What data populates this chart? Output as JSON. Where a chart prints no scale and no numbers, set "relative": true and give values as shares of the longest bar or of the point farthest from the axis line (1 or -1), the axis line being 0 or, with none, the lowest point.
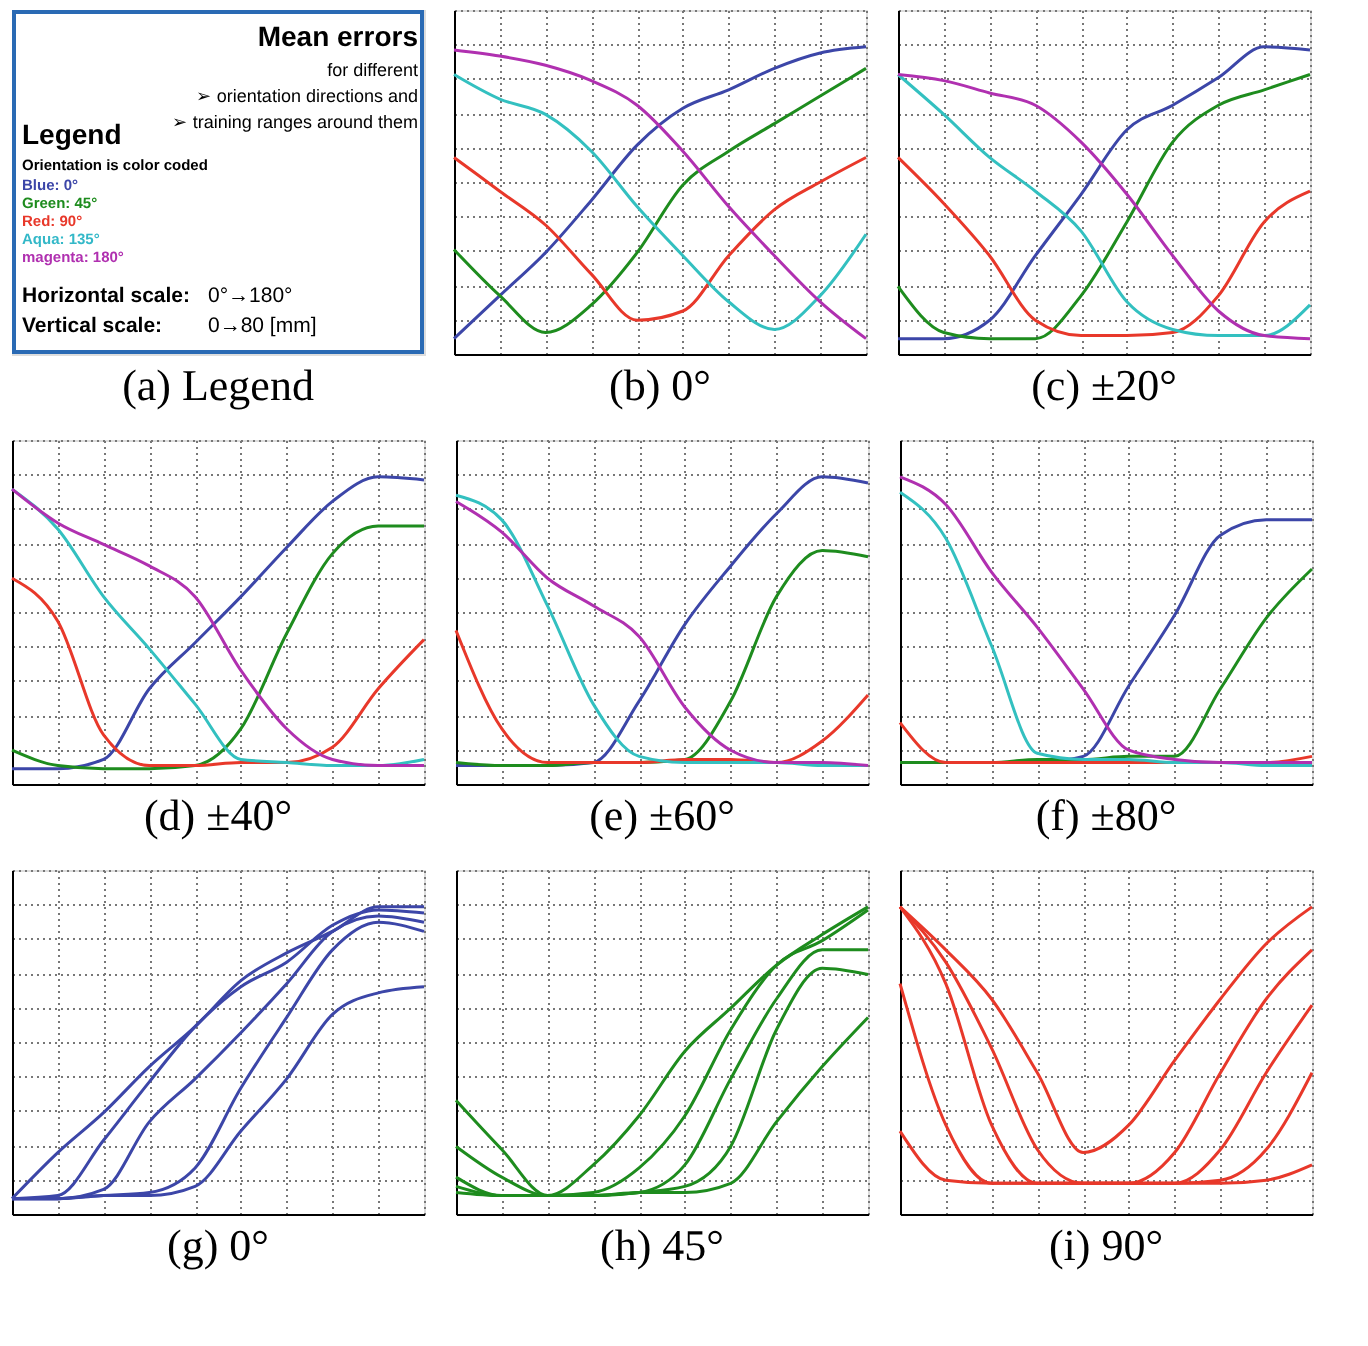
{
  "chart_data": [
    {
      "type": "other",
      "title": "(a) Legend",
      "annotations": [
        "Mean errors",
        "for different",
        "➢     orientation directions and",
        "➢ training ranges around them",
        "Legend",
        "Orientation is color coded",
        "Horizontal scale:",
        "0°→180°",
        "Vertical scale:",
        "0→80 [mm]"
      ],
      "categories": [
        "Blue: 0°",
        "Green: 45°",
        "Red: 90°",
        "Aqua: 135°",
        "magenta: 180°"
      ],
      "colors": [
        "#3c46a8",
        "#1e8c1e",
        "#e8382a",
        "#33b8c8",
        "#b030b0"
      ]
    },
    {
      "type": "line",
      "title": "(b) 0°",
      "relative": true,
      "grid": true,
      "tick_labels": false,
      "categories": [
        null,
        null,
        null,
        null,
        null,
        null,
        null,
        null,
        null,
        null
      ],
      "series": [
        {
          "color": "#3c46a8",
          "values": [
            0.05,
            0.19,
            0.33,
            0.5,
            0.68,
            0.8,
            0.86,
            0.93,
            0.98,
            1
          ]
        },
        {
          "color": "#1e8c1e",
          "values": [
            0.34,
            0.19,
            0.07,
            0.16,
            0.33,
            0.55,
            0.66,
            0.75,
            0.84,
            0.93
          ]
        },
        {
          "color": "#e8382a",
          "values": [
            0.64,
            0.53,
            0.42,
            0.26,
            0.11,
            0.14,
            0.32,
            0.47,
            0.56,
            0.64
          ]
        },
        {
          "color": "#33c0c0",
          "values": [
            0.91,
            0.83,
            0.78,
            0.66,
            0.48,
            0.32,
            0.17,
            0.08,
            0.19,
            0.39
          ]
        },
        {
          "color": "#b030b0",
          "values": [
            0.99,
            0.97,
            0.94,
            0.89,
            0.81,
            0.66,
            0.48,
            0.32,
            0.17,
            0.05
          ]
        }
      ]
    },
    {
      "type": "line",
      "title": "(c) ±20°",
      "relative": true,
      "grid": true,
      "tick_labels": false,
      "categories": [
        null,
        null,
        null,
        null,
        null,
        null,
        null,
        null,
        null,
        null
      ],
      "series": [
        {
          "color": "#3c46a8",
          "values": [
            0.05,
            0.05,
            0.11,
            0.32,
            0.52,
            0.73,
            0.81,
            0.9,
            1,
            0.99
          ]
        },
        {
          "color": "#1e8c1e",
          "values": [
            0.22,
            0.07,
            0.05,
            0.05,
            0.19,
            0.43,
            0.69,
            0.81,
            0.86,
            0.91
          ]
        },
        {
          "color": "#e8382a",
          "values": [
            0.64,
            0.49,
            0.32,
            0.11,
            0.06,
            0.06,
            0.07,
            0.19,
            0.43,
            0.53
          ]
        },
        {
          "color": "#33c0c0",
          "values": [
            0.91,
            0.78,
            0.64,
            0.53,
            0.4,
            0.17,
            0.08,
            0.06,
            0.06,
            0.16
          ]
        },
        {
          "color": "#b030b0",
          "values": [
            0.91,
            0.89,
            0.85,
            0.81,
            0.69,
            0.52,
            0.32,
            0.14,
            0.06,
            0.05
          ]
        }
      ]
    },
    {
      "type": "line",
      "title": "(d) ±40°",
      "relative": true,
      "grid": true,
      "tick_labels": false,
      "categories": [
        null,
        null,
        null,
        null,
        null,
        null,
        null,
        null,
        null,
        null
      ],
      "series": [
        {
          "color": "#3c46a8",
          "values": [
            0.05,
            0.05,
            0.08,
            0.31,
            0.46,
            0.61,
            0.77,
            0.92,
            1,
            0.99
          ]
        },
        {
          "color": "#1e8c1e",
          "values": [
            0.11,
            0.06,
            0.05,
            0.05,
            0.06,
            0.18,
            0.49,
            0.75,
            0.84,
            0.84
          ]
        },
        {
          "color": "#e8382a",
          "values": [
            0.67,
            0.53,
            0.16,
            0.06,
            0.06,
            0.07,
            0.07,
            0.12,
            0.31,
            0.47
          ]
        },
        {
          "color": "#33c0c0",
          "values": [
            0.96,
            0.83,
            0.61,
            0.44,
            0.26,
            0.08,
            0.07,
            0.06,
            0.06,
            0.08
          ]
        },
        {
          "color": "#b030b0",
          "values": [
            0.96,
            0.85,
            0.78,
            0.71,
            0.61,
            0.37,
            0.18,
            0.08,
            0.06,
            0.06
          ]
        }
      ]
    },
    {
      "type": "line",
      "title": "(e) ±60°",
      "relative": true,
      "grid": true,
      "tick_labels": false,
      "categories": [
        null,
        null,
        null,
        null,
        null,
        null,
        null,
        null,
        null,
        null
      ],
      "series": [
        {
          "color": "#3c46a8",
          "values": [
            0.06,
            0.06,
            0.06,
            0.07,
            0.27,
            0.52,
            0.71,
            0.88,
            1,
            0.98
          ]
        },
        {
          "color": "#1e8c1e",
          "values": [
            0.07,
            0.06,
            0.06,
            0.07,
            0.07,
            0.08,
            0.27,
            0.61,
            0.76,
            0.74
          ]
        },
        {
          "color": "#e8382a",
          "values": [
            0.5,
            0.18,
            0.07,
            0.07,
            0.07,
            0.08,
            0.08,
            0.07,
            0.14,
            0.29
          ]
        },
        {
          "color": "#33c0c0",
          "values": [
            0.94,
            0.86,
            0.58,
            0.26,
            0.09,
            0.07,
            0.07,
            0.07,
            0.06,
            0.06
          ]
        },
        {
          "color": "#b030b0",
          "values": [
            0.92,
            0.82,
            0.67,
            0.58,
            0.48,
            0.25,
            0.11,
            0.07,
            0.07,
            0.06
          ]
        }
      ]
    },
    {
      "type": "line",
      "title": "(f) ±80°",
      "relative": true,
      "grid": true,
      "tick_labels": false,
      "categories": [
        null,
        null,
        null,
        null,
        null,
        null,
        null,
        null,
        null,
        null
      ],
      "series": [
        {
          "color": "#3c46a8",
          "values": [
            null,
            null,
            null,
            0.07,
            0.09,
            0.32,
            0.55,
            0.81,
            0.86,
            0.86
          ]
        },
        {
          "color": "#1e8c1e",
          "values": [
            0.07,
            0.07,
            0.07,
            0.08,
            0.08,
            0.09,
            0.09,
            0.31,
            0.54,
            0.7
          ]
        },
        {
          "color": "#e8382a",
          "values": [
            0.2,
            0.07,
            0.07,
            0.07,
            0.07,
            0.07,
            0.07,
            0.07,
            0.07,
            0.09
          ]
        },
        {
          "color": "#33c0c0",
          "values": [
            0.95,
            0.8,
            0.45,
            0.1,
            0.08,
            0.08,
            0.07,
            0.07,
            0.06,
            0.06
          ]
        },
        {
          "color": "#b030b0",
          "values": [
            1,
            0.91,
            0.69,
            0.51,
            0.31,
            0.11,
            0.08,
            0.07,
            0.07,
            0.07
          ]
        }
      ]
    },
    {
      "type": "line",
      "title": "(g) 0°",
      "relative": true,
      "grid": true,
      "tick_labels": false,
      "categories": [
        null,
        null,
        null,
        null,
        null,
        null,
        null,
        null,
        null,
        null
      ],
      "series": [
        {
          "color": "#3c46a8",
          "values": [
            0.05,
            0.2,
            0.33,
            0.48,
            0.61,
            0.76,
            0.85,
            0.92,
            1,
            1
          ]
        },
        {
          "color": "#3c46a8",
          "values": [
            0.05,
            0.06,
            0.24,
            0.43,
            0.61,
            0.74,
            0.82,
            0.94,
            0.99,
            0.98
          ]
        },
        {
          "color": "#3c46a8",
          "values": [
            0.05,
            0.05,
            0.08,
            0.3,
            0.44,
            0.59,
            0.75,
            0.92,
            0.97,
            0.95
          ]
        },
        {
          "color": "#3c46a8",
          "values": [
            0.05,
            0.05,
            0.06,
            0.07,
            0.15,
            0.41,
            0.64,
            0.86,
            0.95,
            0.92
          ]
        },
        {
          "color": "#3c46a8",
          "values": [
            0.05,
            0.05,
            0.06,
            0.06,
            0.09,
            0.27,
            0.44,
            0.65,
            0.72,
            0.74
          ]
        }
      ]
    },
    {
      "type": "line",
      "title": "(h) 45°",
      "relative": true,
      "grid": true,
      "tick_labels": false,
      "categories": [
        null,
        null,
        null,
        null,
        null,
        null,
        null,
        null,
        null,
        null
      ],
      "series": [
        {
          "color": "#1e8c1e",
          "values": [
            0.37,
            0.21,
            0.06,
            0.16,
            0.32,
            0.53,
            0.67,
            0.81,
            0.91,
            1
          ]
        },
        {
          "color": "#1e8c1e",
          "values": [
            0.22,
            0.12,
            0.06,
            0.07,
            0.15,
            0.32,
            0.6,
            0.81,
            0.89,
            0.99
          ]
        },
        {
          "color": "#1e8c1e",
          "values": [
            0.12,
            0.06,
            0.06,
            0.06,
            0.07,
            0.16,
            0.44,
            0.7,
            0.86,
            0.86
          ]
        },
        {
          "color": "#1e8c1e",
          "values": [
            0.09,
            0.06,
            0.06,
            0.06,
            0.07,
            0.09,
            0.22,
            0.6,
            0.8,
            0.78
          ]
        },
        {
          "color": "#1e8c1e",
          "values": [
            0.07,
            0.06,
            0.06,
            0.06,
            0.07,
            0.07,
            0.1,
            0.3,
            0.48,
            0.64
          ]
        }
      ]
    },
    {
      "type": "line",
      "title": "(i) 90°",
      "relative": true,
      "grid": true,
      "tick_labels": false,
      "categories": [
        null,
        null,
        null,
        null,
        null,
        null,
        null,
        null,
        null,
        null
      ],
      "series": [
        {
          "color": "#e8382a",
          "values": [
            1,
            0.86,
            0.7,
            0.46,
            0.2,
            0.29,
            0.5,
            0.7,
            0.88,
            1
          ]
        },
        {
          "color": "#e8382a",
          "values": [
            1,
            0.82,
            0.54,
            0.21,
            0.1,
            0.1,
            0.2,
            0.46,
            0.7,
            0.86
          ]
        },
        {
          "color": "#e8382a",
          "values": [
            1,
            0.75,
            0.29,
            0.1,
            0.1,
            0.1,
            0.1,
            0.21,
            0.46,
            0.68
          ]
        },
        {
          "color": "#e8382a",
          "values": [
            0.75,
            0.29,
            0.1,
            0.1,
            0.1,
            0.1,
            0.1,
            0.11,
            0.21,
            0.46
          ]
        },
        {
          "color": "#e8382a",
          "values": [
            0.27,
            0.11,
            0.1,
            0.1,
            0.1,
            0.1,
            0.1,
            0.1,
            0.11,
            0.16
          ]
        }
      ]
    }
  ]
}
